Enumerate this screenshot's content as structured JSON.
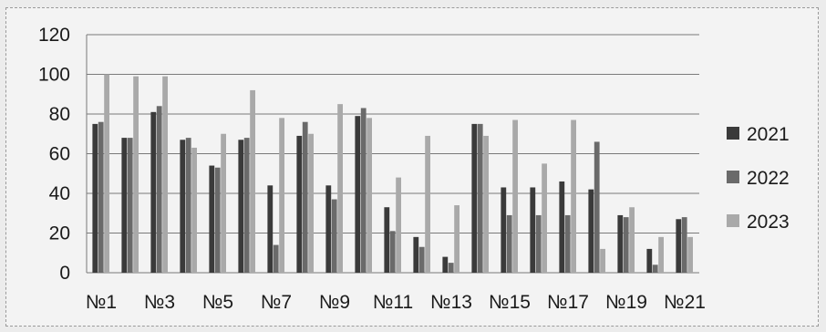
{
  "chart_data": {
    "type": "bar",
    "categories": [
      "№1",
      "№2",
      "№3",
      "№4",
      "№5",
      "№6",
      "№7",
      "№8",
      "№9",
      "№10",
      "№11",
      "№12",
      "№13",
      "№14",
      "№15",
      "№16",
      "№17",
      "№18",
      "№19",
      "№20",
      "№21"
    ],
    "x_tick_labels": [
      "№1",
      "№3",
      "№5",
      "№7",
      "№9",
      "№11",
      "№13",
      "№15",
      "№17",
      "№19",
      "№21"
    ],
    "series": [
      {
        "name": "2021",
        "color": "#3a3a3a",
        "values": [
          75,
          68,
          81,
          67,
          54,
          67,
          44,
          69,
          44,
          79,
          33,
          18,
          8,
          75,
          43,
          43,
          46,
          42,
          29,
          12,
          27
        ]
      },
      {
        "name": "2022",
        "color": "#6a6a6a",
        "values": [
          76,
          68,
          84,
          68,
          53,
          68,
          14,
          76,
          37,
          83,
          21,
          13,
          5,
          75,
          29,
          29,
          29,
          66,
          28,
          4,
          28
        ]
      },
      {
        "name": "2023",
        "color": "#a9a9a9",
        "values": [
          100,
          99,
          99,
          63,
          70,
          92,
          78,
          70,
          85,
          78,
          48,
          69,
          34,
          69,
          77,
          55,
          77,
          12,
          33,
          18,
          18
        ]
      }
    ],
    "ylim": [
      0,
      120
    ],
    "yticks": [
      0,
      20,
      40,
      60,
      80,
      100,
      120
    ],
    "grid": true,
    "legend_position": "right"
  }
}
